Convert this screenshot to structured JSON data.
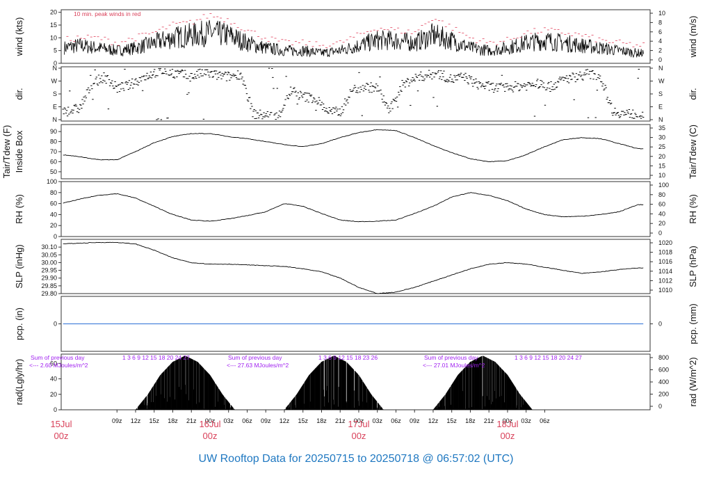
{
  "title": "UW Rooftop Data for 20250715  to  20250718 @ 06:57:02  (UTC)",
  "colors": {
    "frame": "#333333",
    "trace": "#000000",
    "peak": "#e0405a",
    "precip": "#2a6fd6",
    "title": "#1f78c1",
    "day_label": "#d9415a",
    "rad_annot": "#a020f0"
  },
  "chart_data": [
    {
      "type": "line",
      "name": "wind",
      "ylabel": "wind (kts)",
      "ylabel2": "wind (m/s)",
      "ylim": [
        0,
        21
      ],
      "yticks": [
        "0",
        "5",
        "10",
        "15",
        "20"
      ],
      "yticks_right": [
        "0",
        "2",
        "4",
        "6",
        "8",
        "10"
      ],
      "annotation": "10 min. peak winds in red",
      "t": [
        0,
        3,
        6,
        9,
        12,
        15,
        18,
        21,
        24,
        27,
        30,
        33,
        36,
        39,
        42,
        45,
        48,
        51,
        54,
        57,
        60,
        63,
        66,
        69,
        72,
        75,
        78,
        81,
        84,
        87,
        90,
        93
      ],
      "values": [
        6,
        7,
        6,
        5,
        6,
        8,
        10,
        11,
        12,
        11,
        8,
        6,
        5,
        5,
        4,
        5,
        7,
        9,
        9,
        8,
        11,
        9,
        6,
        5,
        6,
        8,
        9,
        8,
        7,
        6,
        5,
        4
      ],
      "peaks": [
        9,
        10,
        10,
        8,
        10,
        12,
        15,
        16,
        19,
        17,
        13,
        10,
        8,
        8,
        7,
        8,
        11,
        14,
        13,
        12,
        18,
        14,
        10,
        8,
        9,
        12,
        13,
        12,
        11,
        9,
        8,
        7
      ]
    },
    {
      "type": "scatter",
      "name": "direction",
      "ylabel": "dir.",
      "ylabel2": "dir.",
      "yticks": [
        "N",
        "E",
        "S",
        "W",
        "N"
      ],
      "yticks_right": [
        "N",
        "E",
        "S",
        "W",
        "N"
      ],
      "ylim": [
        0,
        360
      ],
      "t": [
        1,
        3,
        5,
        7,
        9,
        11,
        13,
        15,
        17,
        19,
        21,
        23,
        25,
        27,
        29,
        31,
        33,
        35,
        37,
        39,
        41,
        43,
        45,
        47,
        49,
        51,
        53,
        55,
        57,
        59,
        61,
        63,
        65,
        67,
        69,
        71,
        73,
        75,
        77,
        79,
        81,
        83,
        85,
        87,
        89,
        91
      ],
      "values": [
        60,
        80,
        250,
        300,
        220,
        240,
        290,
        330,
        340,
        320,
        300,
        330,
        310,
        300,
        320,
        40,
        30,
        20,
        200,
        160,
        150,
        60,
        50,
        210,
        230,
        220,
        60,
        240,
        290,
        310,
        320,
        280,
        300,
        250,
        230,
        220,
        230,
        240,
        250,
        230,
        280,
        300,
        320,
        300,
        60,
        40
      ]
    },
    {
      "type": "line",
      "name": "temperature",
      "ylabel": "Tair/Tdew (F)",
      "ylabel_line2": "Inside Box",
      "ylabel2": "Tair/Tdew (C)",
      "ylim": [
        43,
        97
      ],
      "yticks": [
        "50",
        "60",
        "70",
        "80",
        "90"
      ],
      "yticks_right": [
        "10",
        "15",
        "20",
        "25",
        "30",
        "35"
      ],
      "t": [
        0,
        3,
        6,
        9,
        12,
        15,
        18,
        21,
        24,
        27,
        30,
        33,
        36,
        39,
        42,
        45,
        48,
        51,
        54,
        57,
        60,
        63,
        66,
        69,
        72,
        75,
        78,
        81,
        84,
        87,
        90,
        93
      ],
      "values": [
        67,
        65,
        62,
        62,
        70,
        79,
        85,
        88,
        88,
        85,
        83,
        80,
        77,
        75,
        78,
        84,
        89,
        92,
        91,
        84,
        76,
        69,
        63,
        60,
        61,
        67,
        75,
        82,
        84,
        83,
        78,
        73
      ]
    },
    {
      "type": "line",
      "name": "relative-humidity",
      "ylabel": "RH (%)",
      "ylabel2": "RH (%)",
      "ylim": [
        0,
        100
      ],
      "yticks": [
        "0",
        "20",
        "40",
        "60",
        "80",
        "100"
      ],
      "yticks_right": [
        "0",
        "20",
        "40",
        "60",
        "80",
        "100"
      ],
      "t": [
        0,
        3,
        6,
        9,
        12,
        15,
        18,
        21,
        24,
        27,
        30,
        33,
        36,
        39,
        42,
        45,
        48,
        51,
        54,
        57,
        60,
        63,
        66,
        69,
        72,
        75,
        78,
        81,
        84,
        87,
        90,
        93
      ],
      "values": [
        60,
        68,
        75,
        78,
        70,
        55,
        40,
        30,
        28,
        32,
        38,
        45,
        60,
        55,
        42,
        30,
        27,
        28,
        30,
        42,
        55,
        72,
        80,
        75,
        65,
        50,
        40,
        36,
        37,
        40,
        45,
        58
      ]
    },
    {
      "type": "line",
      "name": "sea-level-pressure",
      "ylabel": "SLP (inHg)",
      "ylabel2": "SLP (hPa)",
      "ylim": [
        29.8,
        30.15
      ],
      "yticks": [
        "29.80",
        "29.85",
        "29.90",
        "29.95",
        "30.00",
        "30.05",
        "30.10"
      ],
      "yticks_right": [
        "1010",
        "1012",
        "1014",
        "1016",
        "1018",
        "1020"
      ],
      "t": [
        0,
        3,
        6,
        9,
        12,
        15,
        18,
        21,
        24,
        27,
        30,
        33,
        36,
        39,
        42,
        45,
        48,
        51,
        54,
        57,
        60,
        63,
        66,
        69,
        72,
        75,
        78,
        81,
        84,
        87,
        90,
        93
      ],
      "values": [
        30.12,
        30.125,
        30.13,
        30.13,
        30.12,
        30.08,
        30.03,
        30.0,
        29.99,
        29.99,
        29.985,
        29.98,
        29.975,
        29.96,
        29.94,
        29.9,
        29.84,
        29.8,
        29.81,
        29.84,
        29.88,
        29.92,
        29.96,
        29.99,
        30.0,
        29.99,
        29.97,
        29.95,
        29.93,
        29.94,
        29.955,
        29.965
      ]
    },
    {
      "type": "line",
      "name": "precipitation",
      "ylabel": "pcp. (in)",
      "ylabel2": "pcp. (mm)",
      "ylim": [
        -1,
        1
      ],
      "yticks": [
        "0"
      ],
      "yticks_right": [
        "0"
      ],
      "t": [
        0,
        93
      ],
      "values": [
        0,
        0
      ]
    },
    {
      "type": "area",
      "name": "solar-radiation",
      "ylabel": "rad(Lgly/hr)",
      "ylabel2": "rad (W/m^2)",
      "ylim": [
        0,
        72
      ],
      "yticks": [
        "0",
        "20",
        "40",
        "60"
      ],
      "yticks_right": [
        "0",
        "200",
        "400",
        "600",
        "800"
      ],
      "t": [
        12,
        14,
        16,
        18,
        20,
        22,
        24,
        26,
        28,
        36,
        38,
        40,
        42,
        44,
        46,
        48,
        50,
        52,
        60,
        62,
        64,
        66,
        68,
        70,
        72,
        74,
        76
      ],
      "values": [
        0,
        20,
        45,
        62,
        70,
        62,
        45,
        20,
        0,
        0,
        20,
        45,
        62,
        70,
        62,
        45,
        20,
        0,
        0,
        20,
        45,
        62,
        70,
        62,
        45,
        20,
        0
      ],
      "daily_summaries": [
        {
          "line1": "Sum of previous day",
          "line2": "<--- 2.60 MJoules/m^2",
          "hours": "1  3  6  9 12 15 18 20 24 27"
        },
        {
          "line1": "Sum of previous day",
          "line2": "<--- 27.63 MJoules/m^2",
          "hours": "1  3  6  9 12 15 18 23 26"
        },
        {
          "line1": "Sum of previous day",
          "line2": "<--- 27.01 MJoules/m^2",
          "hours": "1  3  6  9 12 15 18 20 24 27"
        }
      ],
      "rad_marker": "27"
    }
  ],
  "x_axis": {
    "hour_ticks": [
      "09z",
      "12z",
      "15z",
      "18z",
      "21z",
      "00z",
      "03z",
      "06z",
      "09z",
      "12z",
      "15z",
      "18z",
      "21z",
      "00z",
      "03z",
      "06z",
      "09z",
      "12z",
      "15z",
      "18z",
      "21z",
      "00z",
      "03z",
      "06z"
    ],
    "hour_positions": [
      9,
      12,
      15,
      18,
      21,
      24,
      27,
      30,
      33,
      36,
      39,
      42,
      45,
      48,
      51,
      54,
      57,
      60,
      63,
      66,
      69,
      72,
      75,
      78
    ],
    "day_labels": [
      {
        "date": "15Jul",
        "time": "00z",
        "t": 0
      },
      {
        "date": "16Jul",
        "time": "00z",
        "t": 24
      },
      {
        "date": "17Jul",
        "time": "00z",
        "t": 48
      },
      {
        "date": "18Jul",
        "time": "00z",
        "t": 72
      }
    ]
  }
}
